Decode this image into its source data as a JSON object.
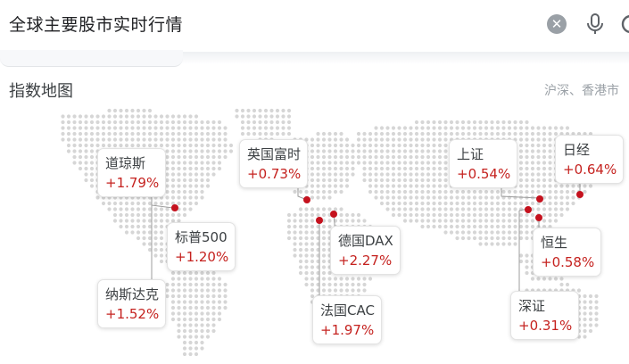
{
  "search": {
    "query": "全球主要股市实时行情",
    "clear_symbol": "✕"
  },
  "section": {
    "title": "指数地图",
    "subtitle": "沪深、香港市"
  },
  "markets": [
    {
      "name": "道琼斯",
      "change": "+1.79%"
    },
    {
      "name": "标普500",
      "change": "+1.20%"
    },
    {
      "name": "纳斯达克",
      "change": "+1.52%"
    },
    {
      "name": "英国富时",
      "change": "+0.73%"
    },
    {
      "name": "德国DAX",
      "change": "+2.27%"
    },
    {
      "name": "法国CAC",
      "change": "+1.97%"
    },
    {
      "name": "上证",
      "change": "+0.54%"
    },
    {
      "name": "日经",
      "change": "+0.64%"
    },
    {
      "name": "恒生",
      "change": "+0.58%"
    },
    {
      "name": "深证",
      "change": "+0.31%"
    }
  ],
  "colors": {
    "positive": "#c5221f",
    "marker": "#c5121e",
    "map_dot": "#d6d6d6",
    "leader": "#9e9e9e"
  },
  "icons": {
    "clear": "clear-icon",
    "mic": "mic-icon",
    "lens": "lens-icon"
  }
}
